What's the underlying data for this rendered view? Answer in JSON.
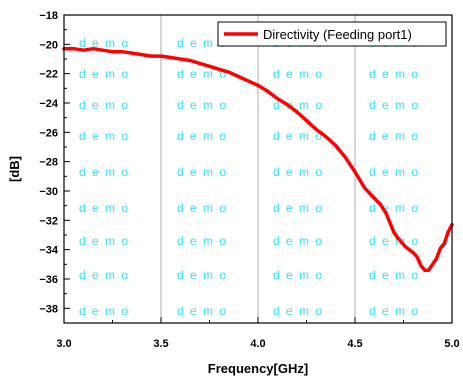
{
  "colors": {
    "series": "#ff0000",
    "grid": "#9a9a9a",
    "watermark": "#33e0ff"
  },
  "watermark_text": "d e m o",
  "chart_data": {
    "type": "line",
    "xlabel": "Frequency[GHz]",
    "ylabel": "[dB]",
    "xlim": [
      3.0,
      5.0
    ],
    "ylim": [
      -39,
      -18
    ],
    "x_ticks": [
      3.0,
      3.5,
      4.0,
      4.5,
      5.0
    ],
    "x_tick_labels": [
      "3.0",
      "3.5",
      "4.0",
      "4.5",
      "5.0"
    ],
    "y_ticks": [
      -20,
      -22,
      -24,
      -26,
      -28,
      -30,
      -32,
      -34,
      -36,
      -38
    ],
    "y_tick_labels": [
      "−20",
      "−22",
      "−24",
      "−26",
      "−28",
      "−30",
      "−32",
      "−34",
      "−36",
      "−38"
    ],
    "extra_y_label": "−18",
    "grid": "vertical",
    "legend_position": "top-right",
    "series": [
      {
        "name": "Directivity (Feeding port1)",
        "x": [
          3.0,
          3.05,
          3.1,
          3.15,
          3.2,
          3.25,
          3.3,
          3.35,
          3.4,
          3.45,
          3.5,
          3.55,
          3.6,
          3.65,
          3.7,
          3.75,
          3.8,
          3.85,
          3.9,
          3.95,
          4.0,
          4.05,
          4.1,
          4.15,
          4.2,
          4.25,
          4.3,
          4.35,
          4.4,
          4.45,
          4.5,
          4.55,
          4.6,
          4.63,
          4.66,
          4.7,
          4.72,
          4.74,
          4.76,
          4.78,
          4.8,
          4.82,
          4.84,
          4.86,
          4.88,
          4.9,
          4.92,
          4.94,
          4.96,
          4.98,
          5.0
        ],
        "y": [
          -20.3,
          -20.3,
          -20.4,
          -20.3,
          -20.4,
          -20.5,
          -20.5,
          -20.6,
          -20.7,
          -20.8,
          -20.8,
          -20.9,
          -21.0,
          -21.1,
          -21.3,
          -21.5,
          -21.7,
          -21.9,
          -22.2,
          -22.5,
          -22.8,
          -23.2,
          -23.7,
          -24.1,
          -24.6,
          -25.2,
          -25.8,
          -26.3,
          -26.9,
          -27.7,
          -28.7,
          -29.8,
          -30.5,
          -30.9,
          -31.5,
          -32.8,
          -33.2,
          -33.5,
          -33.8,
          -34.0,
          -34.2,
          -34.5,
          -35.1,
          -35.4,
          -35.4,
          -35.0,
          -34.6,
          -33.9,
          -33.6,
          -32.8,
          -32.3
        ]
      }
    ]
  }
}
